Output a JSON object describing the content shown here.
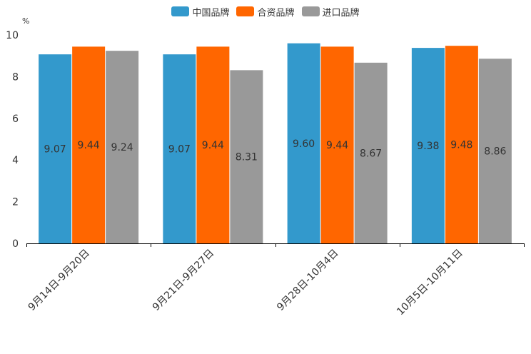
{
  "chart_data": {
    "type": "bar",
    "title": "",
    "xlabel": "",
    "ylabel": "%",
    "ylim": [
      0,
      10
    ],
    "yticks": [
      0,
      2,
      4,
      6,
      8,
      10
    ],
    "grid": false,
    "legend_position": "top-center",
    "categories": [
      "9月14日-9月20日",
      "9月21日-9月27日",
      "9月28日-10月4日",
      "10月5日-10月11日"
    ],
    "series": [
      {
        "name": "中国品牌",
        "color": "#3399cc",
        "values": [
          9.07,
          9.07,
          9.6,
          9.38
        ]
      },
      {
        "name": "合资品牌",
        "color": "#ff6600",
        "values": [
          9.44,
          9.44,
          9.44,
          9.48
        ]
      },
      {
        "name": "进口品牌",
        "color": "#999999",
        "values": [
          9.24,
          8.31,
          8.67,
          8.86
        ]
      }
    ]
  }
}
